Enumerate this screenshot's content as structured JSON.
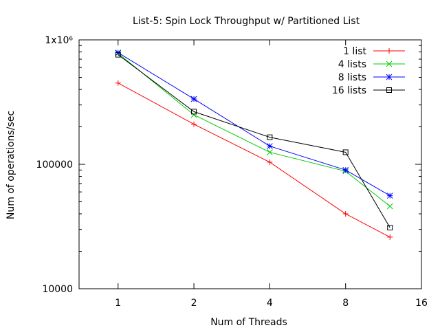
{
  "chart_data": {
    "type": "line",
    "title": "List-5: Spin Lock Throughput w/ Partitioned List",
    "xlabel": "Num of Threads",
    "ylabel": "Num of operations/sec",
    "x_scale": "log2",
    "y_scale": "log10",
    "xlim": [
      0.7,
      16
    ],
    "ylim": [
      10000,
      1000000
    ],
    "x_ticks": [
      1,
      2,
      4,
      8,
      16
    ],
    "x_tick_labels": [
      "1",
      "2",
      "4",
      "8",
      "16"
    ],
    "y_ticks": [
      10000,
      100000,
      1000000
    ],
    "y_tick_labels": [
      "10000",
      "100000",
      "1x10⁶"
    ],
    "grid": false,
    "legend_position": "top-right",
    "x": [
      1,
      2,
      4,
      8,
      12
    ],
    "series": [
      {
        "name": "1 list",
        "color": "#ff0000",
        "marker": "plus",
        "values": [
          450000,
          210000,
          104000,
          40000,
          26000
        ]
      },
      {
        "name": "4 lists",
        "color": "#00cc00",
        "marker": "cross",
        "values": [
          780000,
          250000,
          125000,
          88000,
          46000
        ]
      },
      {
        "name": "8 lists",
        "color": "#0000ff",
        "marker": "star",
        "values": [
          790000,
          335000,
          140000,
          90000,
          56000
        ]
      },
      {
        "name": "16 lists",
        "color": "#000000",
        "marker": "square",
        "values": [
          760000,
          265000,
          165000,
          125000,
          31000
        ]
      }
    ]
  }
}
